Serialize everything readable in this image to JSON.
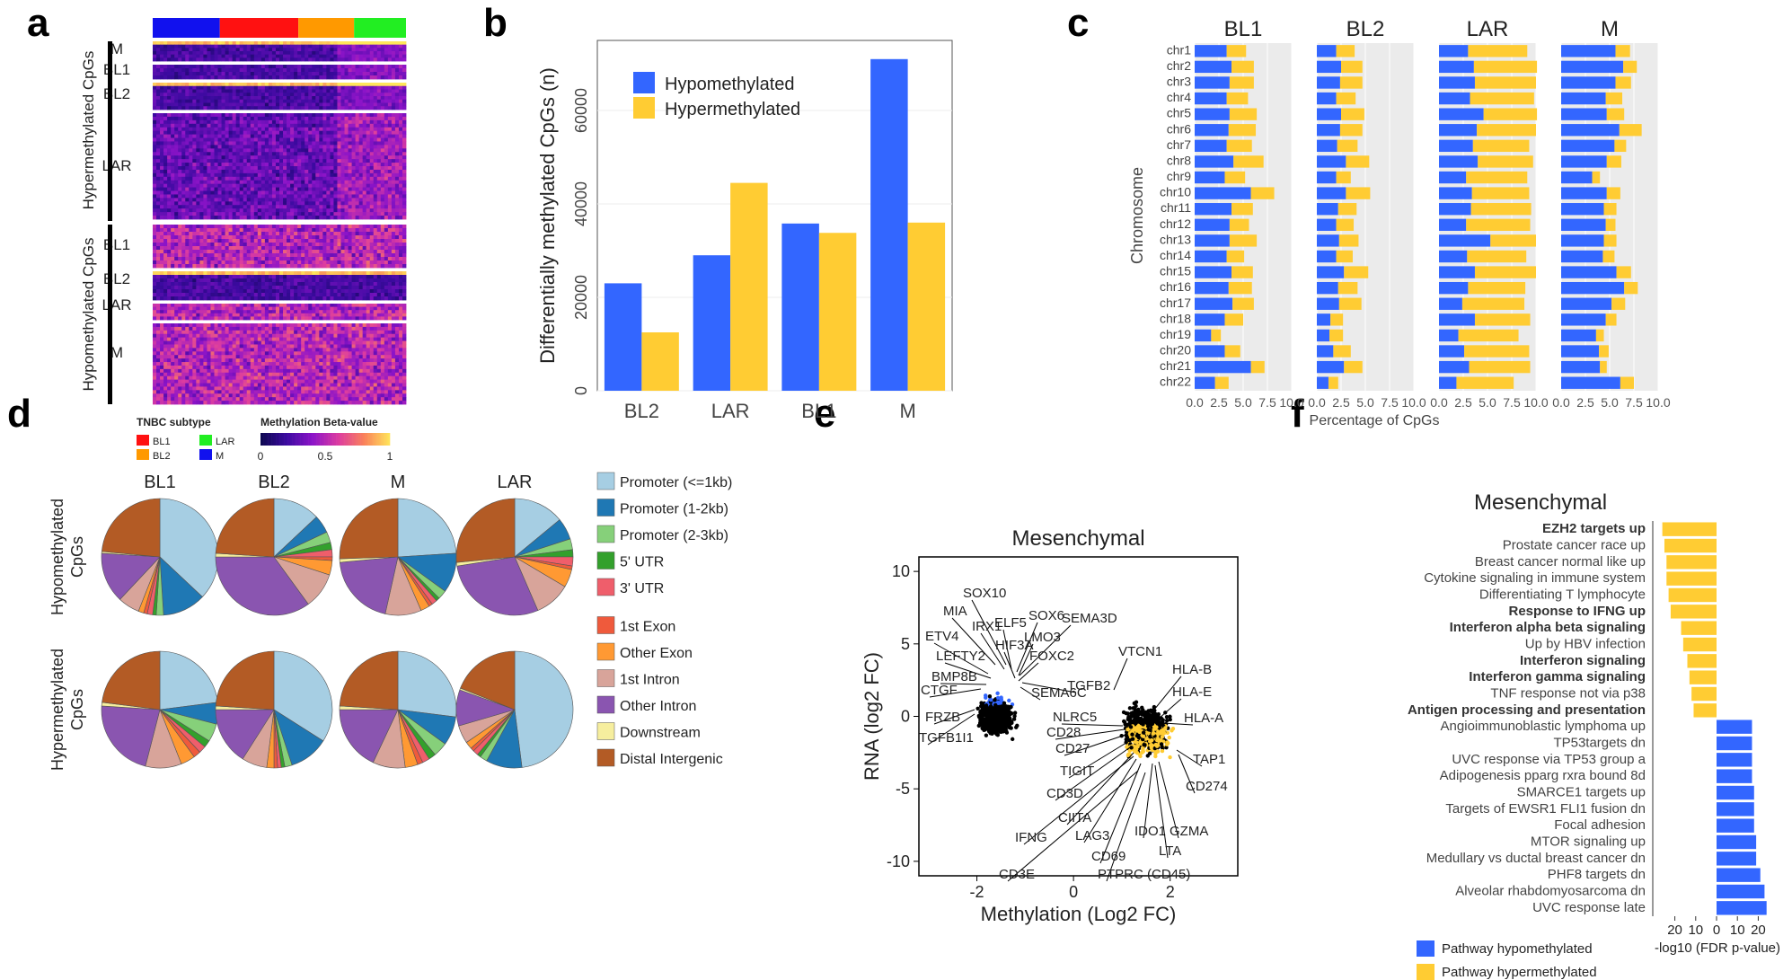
{
  "panel_labels": [
    "a",
    "b",
    "c",
    "d",
    "e",
    "f"
  ],
  "colors": {
    "hypo": "#3366ff",
    "hyper": "#ffcc33",
    "gridbg": "#ebebeb",
    "BL1": "#ff1111",
    "BL2": "#ff9900",
    "LAR": "#22ee22",
    "M": "#1111ee"
  },
  "chart_data": [
    {
      "panel": "a",
      "type": "heatmap",
      "title": "",
      "groups": [
        {
          "label": "Hypermethylated CpGs",
          "rows": [
            "M",
            "BL1",
            "BL2",
            "LAR"
          ]
        },
        {
          "label": "Hypomethylated CpGs",
          "rows": [
            "BL1",
            "BL2",
            "LAR",
            "M"
          ]
        }
      ],
      "column_annotation": [
        "BL1",
        "BL2",
        "LAR",
        "M"
      ],
      "legend_subtype_title": "TNBC subtype",
      "legend_subtypes": [
        "BL1",
        "LAR",
        "BL2",
        "M"
      ],
      "colorbar_title": "Methylation Beta-value",
      "colorbar_ticks": [
        "0",
        "0.5",
        "1"
      ]
    },
    {
      "panel": "b",
      "type": "bar",
      "categories": [
        "BL2",
        "LAR",
        "BL1",
        "M"
      ],
      "series": [
        {
          "name": "Hypomethylated",
          "values": [
            23000,
            29000,
            35800,
            71000
          ]
        },
        {
          "name": "Hypermethylated",
          "values": [
            12500,
            44500,
            33800,
            36000
          ]
        }
      ],
      "ylabel": "Differentially methylated CpGs (n)",
      "yticks": [
        "0",
        "20000",
        "40000",
        "60000"
      ],
      "ylim": [
        0,
        75000
      ],
      "legend": "top-left"
    },
    {
      "panel": "c",
      "type": "bar",
      "orientation": "horizontal-stacked",
      "facets": [
        "BL1",
        "BL2",
        "LAR",
        "M"
      ],
      "categories": [
        "chr1",
        "chr2",
        "chr3",
        "chr4",
        "chr5",
        "chr6",
        "chr7",
        "chr8",
        "chr9",
        "chr10",
        "chr11",
        "chr12",
        "chr13",
        "chr14",
        "chr15",
        "chr16",
        "chr17",
        "chr18",
        "chr19",
        "chr20",
        "chr21",
        "chr22"
      ],
      "series": [
        {
          "facet": "BL1",
          "hypo": [
            3.3,
            3.8,
            3.6,
            3.3,
            3.6,
            3.5,
            3.3,
            4.0,
            3.1,
            5.8,
            3.8,
            3.6,
            3.6,
            3.3,
            3.8,
            3.5,
            3.9,
            3.1,
            1.7,
            3.1,
            5.8,
            2.1
          ],
          "hyper": [
            2.0,
            2.3,
            2.5,
            2.2,
            2.8,
            2.8,
            2.6,
            3.1,
            2.1,
            2.4,
            2.2,
            2.0,
            2.8,
            1.8,
            2.2,
            2.4,
            2.2,
            1.9,
            1.0,
            1.6,
            1.4,
            1.4
          ]
        },
        {
          "facet": "BL2",
          "hypo": [
            2.0,
            2.5,
            2.4,
            2.0,
            2.5,
            2.4,
            2.1,
            3.0,
            2.0,
            3.0,
            2.2,
            2.0,
            2.3,
            2.0,
            2.8,
            2.2,
            2.3,
            1.4,
            1.3,
            1.7,
            2.8,
            1.2
          ],
          "hyper": [
            1.9,
            2.2,
            2.3,
            2.0,
            2.4,
            2.3,
            2.1,
            2.4,
            1.5,
            2.5,
            1.9,
            1.8,
            2.0,
            1.7,
            2.5,
            2.0,
            2.3,
            1.3,
            1.4,
            1.8,
            1.9,
            1.0
          ]
        },
        {
          "facet": "LAR",
          "hypo": [
            3.0,
            3.6,
            3.7,
            3.2,
            4.6,
            3.9,
            3.5,
            4.0,
            2.8,
            3.4,
            3.3,
            2.8,
            5.3,
            2.9,
            3.7,
            3.0,
            2.4,
            3.7,
            2.0,
            2.6,
            3.1,
            1.8
          ],
          "hyper": [
            6.1,
            6.5,
            6.3,
            6.6,
            5.5,
            6.1,
            5.8,
            5.7,
            6.3,
            5.9,
            6.2,
            6.6,
            4.7,
            6.1,
            6.3,
            5.9,
            6.4,
            5.7,
            6.2,
            6.7,
            6.3,
            5.9
          ]
        },
        {
          "facet": "M",
          "hypo": [
            5.6,
            6.4,
            5.6,
            4.6,
            4.7,
            6.0,
            5.5,
            4.7,
            3.2,
            4.7,
            4.4,
            4.6,
            4.4,
            4.3,
            5.7,
            6.5,
            5.2,
            4.6,
            3.6,
            3.9,
            4.0,
            6.1
          ],
          "hyper": [
            1.5,
            1.4,
            1.6,
            1.7,
            1.8,
            2.3,
            1.2,
            1.5,
            0.8,
            1.4,
            1.3,
            1.0,
            1.3,
            1.2,
            1.5,
            1.4,
            1.4,
            1.1,
            0.8,
            1.0,
            0.7,
            1.4
          ]
        }
      ],
      "xticks": [
        "0.0",
        "2.5",
        "5.0",
        "7.5",
        "10.0"
      ],
      "xlim": [
        0,
        10
      ],
      "xlabel": "Percentage of CpGs",
      "ylabel": "Chromosome"
    },
    {
      "panel": "d",
      "type": "pie",
      "columns": [
        "BL1",
        "BL2",
        "M",
        "LAR"
      ],
      "rows": [
        "Hypomethylated CpGs",
        "Hypermethylated CpGs"
      ],
      "legend": [
        {
          "label": "Promoter (<=1kb)",
          "color": "#a6cee3"
        },
        {
          "label": "Promoter (1-2kb)",
          "color": "#1f78b4"
        },
        {
          "label": "Promoter (2-3kb)",
          "color": "#86d07a"
        },
        {
          "label": "5' UTR",
          "color": "#33a02c"
        },
        {
          "label": "3' UTR",
          "color": "#ef5e6b"
        },
        {
          "label": "1st Exon",
          "color": "#ef5a3c"
        },
        {
          "label": "Other Exon",
          "color": "#ff9933"
        },
        {
          "label": "1st Intron",
          "color": "#d8a49a"
        },
        {
          "label": "Other Intron",
          "color": "#8a55b0"
        },
        {
          "label": "Downstream",
          "color": "#f6ee9e"
        },
        {
          "label": "Distal Intergenic",
          "color": "#b35b25"
        }
      ],
      "pies": [
        [
          [
            37,
            12,
            2,
            1,
            1.5,
            1,
            1.5,
            6,
            14,
            0.5,
            23.5
          ],
          [
            13,
            5,
            3,
            2,
            2,
            1,
            4,
            10,
            35,
            1,
            24
          ],
          [
            24,
            11,
            2.5,
            1,
            1.5,
            1,
            2.5,
            10,
            20,
            1,
            25.5
          ],
          [
            14,
            6,
            3,
            2,
            2.5,
            1,
            5,
            10,
            29,
            1,
            26.5
          ]
        ],
        [
          [
            23,
            6,
            5,
            2,
            2,
            2,
            4,
            10,
            22,
            1,
            23
          ],
          [
            34,
            11,
            2,
            1,
            1,
            1,
            2,
            7,
            16,
            1,
            24
          ],
          [
            27,
            8,
            4,
            2,
            2,
            1.5,
            3.5,
            9,
            18,
            1,
            24
          ],
          [
            48,
            10,
            2,
            1,
            1.5,
            1,
            2,
            5,
            10,
            0.5,
            19
          ]
        ]
      ]
    },
    {
      "panel": "e",
      "type": "scatter",
      "title": "Mesenchymal",
      "xlabel": "Methylation (Log2 FC)",
      "ylabel": "RNA (log2 FC)",
      "xlim": [
        -3.2,
        3.4
      ],
      "ylim": [
        -11,
        11
      ],
      "xticks": [
        "-2",
        "0",
        "2"
      ],
      "yticks": [
        "10",
        "5",
        "0",
        "-5",
        "-10"
      ],
      "gene_labels": [
        "MIA",
        "SOX10",
        "IRX1",
        "ELF5",
        "SOX6",
        "SEMA3D",
        "ETV4",
        "LEFTY2",
        "HIF3A",
        "LMO3",
        "FOXC2",
        "BMP8B",
        "TGFB2",
        "CTGF",
        "SEMA6C",
        "FRZB",
        "TGFB1I1",
        "VTCN1",
        "HLA-B",
        "HLA-E",
        "HLA-A",
        "NLRC5",
        "CD28",
        "CD27",
        "TIGIT",
        "CD3D",
        "CIITA",
        "IFNG",
        "LAG3",
        "CD69",
        "IDO1",
        "GZMA",
        "LTA",
        "CD3E",
        "PTPRC (CD45)",
        "TAP1",
        "CD274"
      ],
      "highlight_blue": "Methylation (Log2 FC) < 0 and RNA (log2 FC) > 0",
      "highlight_yellow": "Methylation (Log2 FC) > 0 and RNA (log2 FC) < 0"
    },
    {
      "panel": "f",
      "type": "bar",
      "orientation": "horizontal-diverging",
      "title": "Mesenchymal",
      "categories": [
        "EZH2 targets up",
        "Prostate cancer race up",
        "Breast cancer normal like up",
        "Cytokine signaling in immune system",
        "Differentiating T lymphocyte",
        "Response to IFNG up",
        "Interferon alpha beta signaling",
        "Up by HBV infection",
        "Interferon signaling",
        "Interferon gamma signaling",
        "TNF response not via p38",
        "Antigen processing and presentation",
        "Angioimmunoblastic lymphoma up",
        "TP53targets dn",
        "UVC response via TP53 group a",
        "Adipogenesis pparg rxra bound 8d",
        "SMARCE1 targets up",
        "Targets of EWSR1 FLI1 fusion dn",
        "Focal adhesion",
        "MTOR signaling up",
        "Medullary vs ductal breast cancer dn",
        "PHF8 targets dn",
        "Alveolar rhabdomyosarcoma dn",
        "UVC response late"
      ],
      "bold": [
        "EZH2 targets up",
        "Response to IFNG up",
        "Interferon alpha beta signaling",
        "Interferon signaling",
        "Interferon gamma signaling",
        "Antigen processing and presentation"
      ],
      "values": [
        -26,
        -25,
        -24,
        -24,
        -23,
        -22,
        -17,
        -16,
        -14,
        -13,
        -12,
        -11,
        17,
        17,
        17,
        17,
        18,
        18,
        18,
        19,
        19,
        21,
        23,
        24
      ],
      "xticks": [
        "20",
        "10",
        "0",
        "10",
        "20"
      ],
      "xlim": [
        -28,
        28
      ],
      "xlabel": "-log10 (FDR p-value)",
      "legend": [
        {
          "label": "Pathway hypomethylated",
          "color": "#3366ff"
        },
        {
          "label": "Pathway hypermethylated",
          "color": "#ffcc33"
        }
      ]
    }
  ]
}
